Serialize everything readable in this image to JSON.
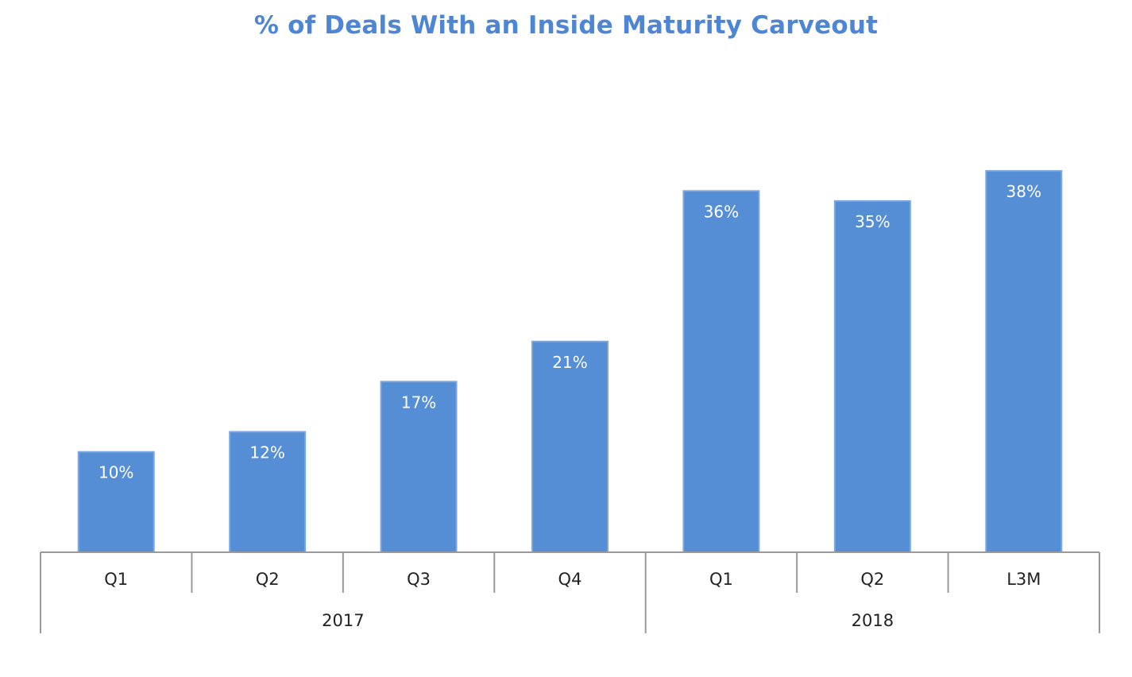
{
  "chart_data": {
    "type": "bar",
    "title": "% of Deals With an Inside Maturity Carveout",
    "categories": [
      "Q1",
      "Q2",
      "Q3",
      "Q4",
      "Q1",
      "Q2",
      "L3M"
    ],
    "groups": [
      {
        "label": "2017",
        "count": 4
      },
      {
        "label": "2018",
        "count": 3
      }
    ],
    "values": [
      10,
      12,
      17,
      21,
      36,
      35,
      38
    ],
    "data_labels": [
      "10%",
      "12%",
      "17%",
      "21%",
      "36%",
      "35%",
      "38%"
    ],
    "ylim": [
      0,
      45
    ],
    "grid": false,
    "legend": "none"
  },
  "colors": {
    "bar": "#558ed5",
    "bar_edge": "#7ea7df",
    "title": "#4f86d4",
    "axis": "#9a9a9a"
  }
}
